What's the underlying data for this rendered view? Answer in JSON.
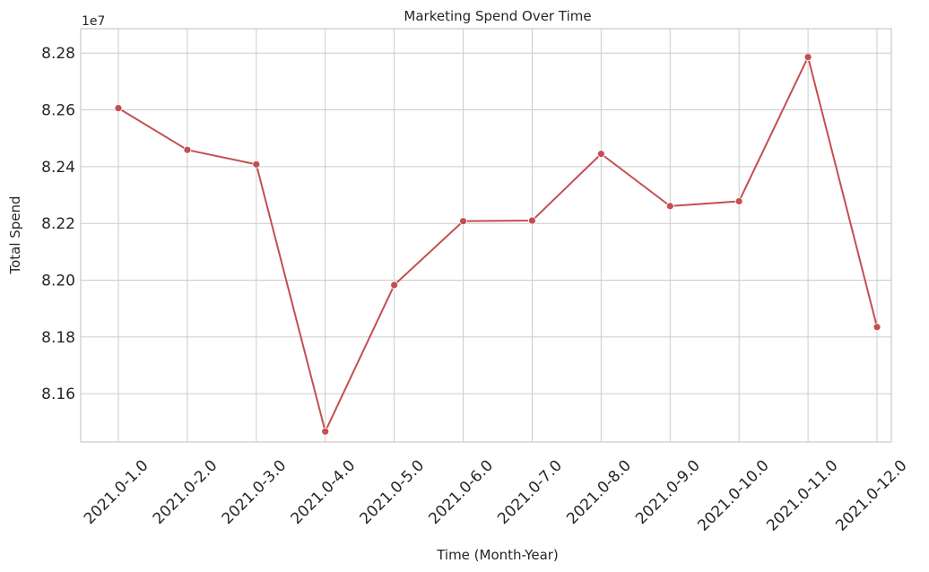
{
  "chart_data": {
    "type": "line",
    "title": "Marketing Spend Over Time",
    "xlabel": "Time (Month-Year)",
    "ylabel": "Total Spend",
    "y_offset_label": "1e7",
    "categories": [
      "2021.0-1.0",
      "2021.0-2.0",
      "2021.0-3.0",
      "2021.0-4.0",
      "2021.0-5.0",
      "2021.0-6.0",
      "2021.0-7.0",
      "2021.0-8.0",
      "2021.0-9.0",
      "2021.0-10.0",
      "2021.0-11.0",
      "2021.0-12.0"
    ],
    "series": [
      {
        "values": [
          82606000,
          82459000,
          82408000,
          81467000,
          81983000,
          82208000,
          82210000,
          82445000,
          82261000,
          82278000,
          82786000,
          81835000
        ]
      }
    ],
    "ylim": [
      81430000,
      82886000
    ],
    "yticks": [
      81600000,
      81800000,
      82000000,
      82200000,
      82400000,
      82600000,
      82800000
    ],
    "ytick_labels": [
      "8.16",
      "8.18",
      "8.20",
      "8.22",
      "8.24",
      "8.26",
      "8.28"
    ],
    "grid": true,
    "line_color": "#c44e52",
    "marker": "circle"
  }
}
